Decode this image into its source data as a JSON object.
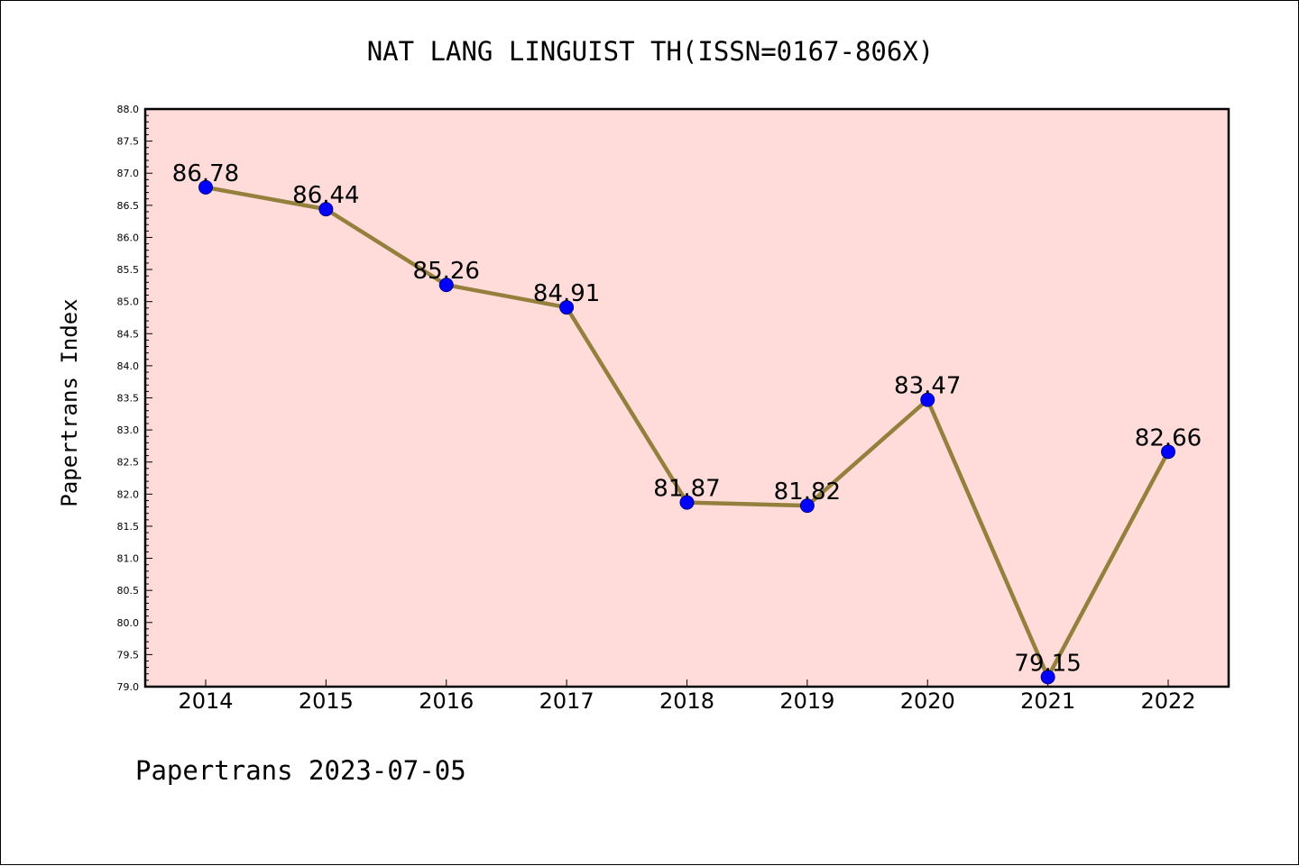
{
  "chart_data": {
    "type": "line",
    "title": "NAT LANG LINGUIST TH(ISSN=0167-806X)",
    "ylabel": "Papertrans Index",
    "xlabel": "",
    "categories": [
      "2014",
      "2015",
      "2016",
      "2017",
      "2018",
      "2019",
      "2020",
      "2021",
      "2022"
    ],
    "series": [
      {
        "values": [
          86.78,
          86.44,
          85.26,
          84.91,
          81.87,
          81.82,
          83.47,
          79.15,
          82.66
        ],
        "labels": [
          "86.78",
          "86.44",
          "85.26",
          "84.91",
          "81.87",
          "81.82",
          "83.47",
          "79.15",
          "82.66"
        ]
      }
    ],
    "ylim": [
      79.0,
      88.0
    ],
    "yticks": [
      "79.0",
      "79.5",
      "80.0",
      "80.5",
      "81.0",
      "81.5",
      "82.0",
      "82.5",
      "83.0",
      "83.5",
      "84.0",
      "84.5",
      "85.0",
      "85.5",
      "86.0",
      "86.5",
      "87.0",
      "87.5",
      "88.0"
    ],
    "grid": false,
    "legend": "none",
    "colors": {
      "plot_background": "#FFDCDA",
      "line": "#94803C",
      "marker": "#0000FF"
    }
  },
  "footer": "Papertrans 2023-07-05"
}
